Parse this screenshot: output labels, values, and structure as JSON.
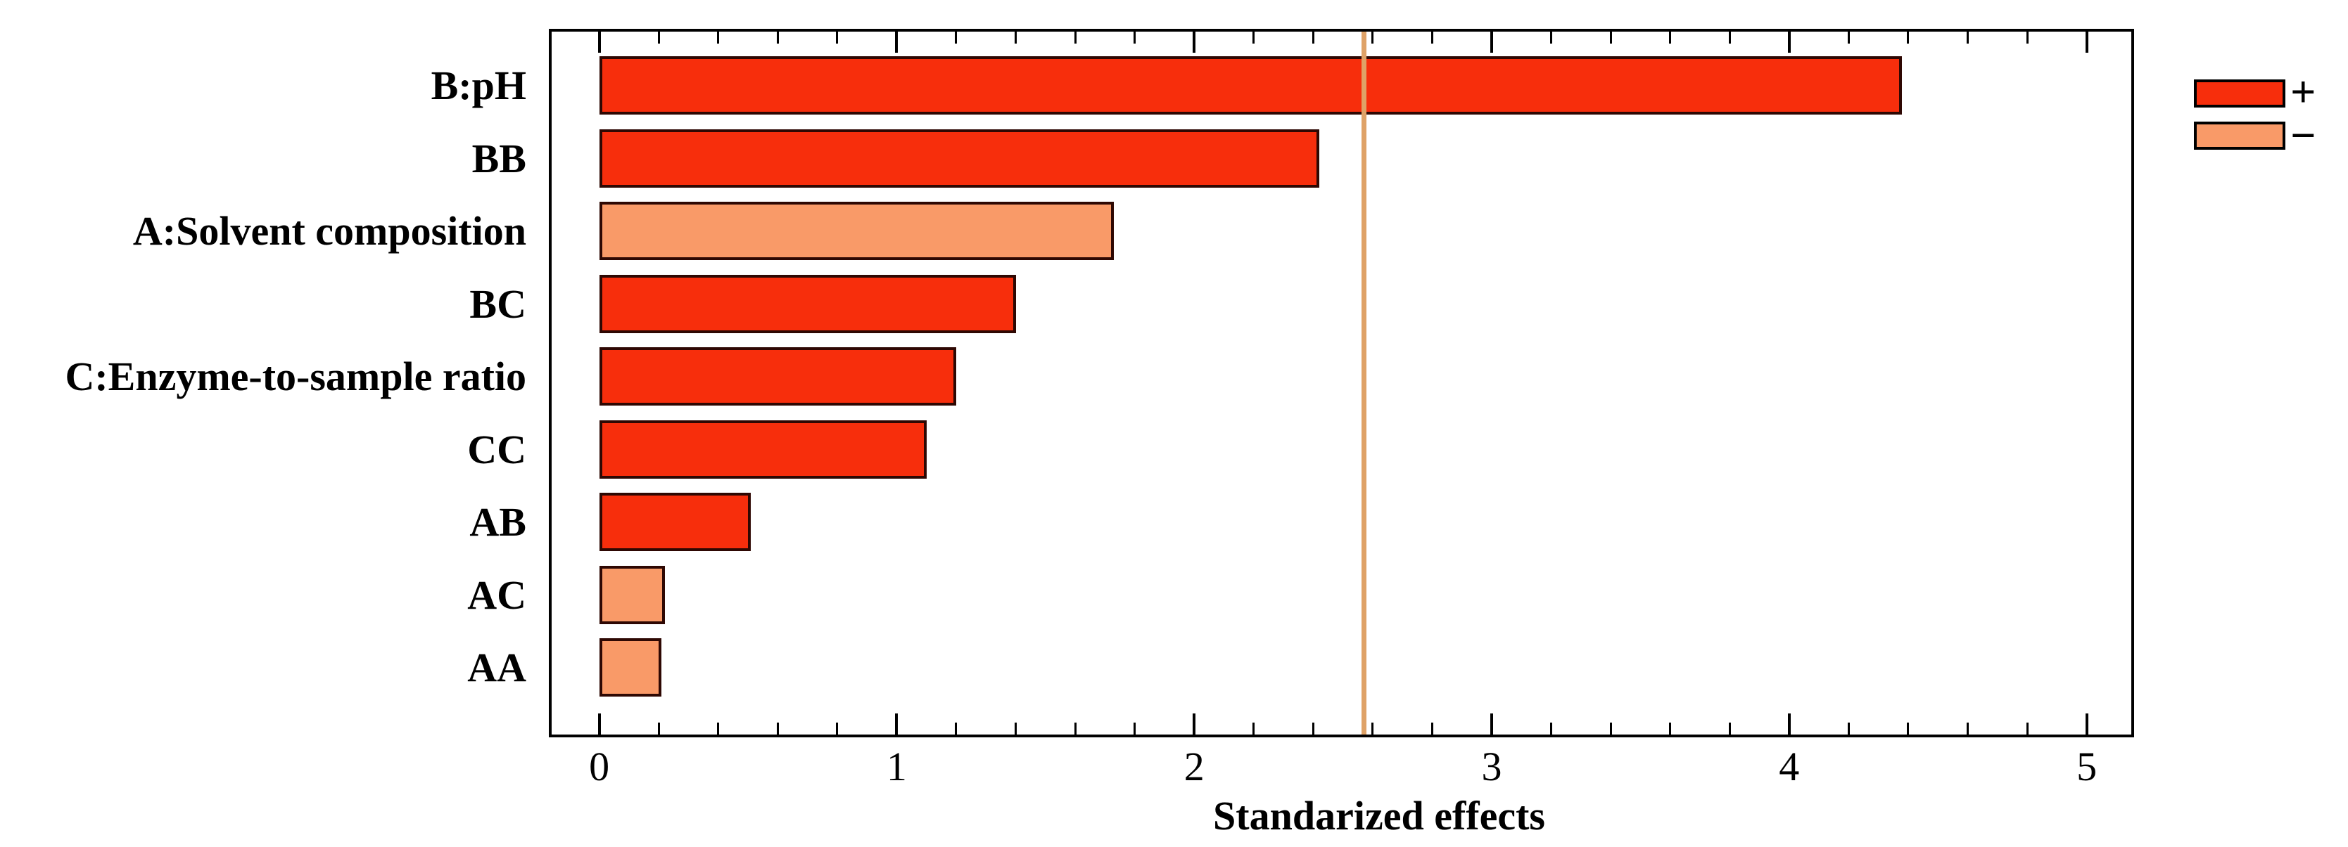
{
  "chart_data": {
    "type": "bar",
    "orientation": "horizontal",
    "title": "",
    "xlabel": "Standarized effects",
    "ylabel": "",
    "categories": [
      "B:pH",
      "BB",
      "A:Solvent composition",
      "BC",
      "C:Enzyme-to-sample ratio",
      "CC",
      "AB",
      "AC",
      "AA"
    ],
    "values": [
      4.38,
      2.42,
      1.73,
      1.4,
      1.2,
      1.1,
      0.51,
      0.22,
      0.21
    ],
    "signs": [
      "+",
      "+",
      "-",
      "+",
      "+",
      "+",
      "+",
      "-",
      "-"
    ],
    "series": [
      {
        "name": "+",
        "description": "positive effect",
        "values": [
          4.38,
          2.42,
          null,
          1.4,
          1.2,
          1.1,
          0.51,
          null,
          null
        ]
      },
      {
        "name": "-",
        "description": "negative effect",
        "values": [
          null,
          null,
          1.73,
          null,
          null,
          null,
          null,
          0.22,
          0.21
        ]
      }
    ],
    "reference_line": {
      "value": 2.57
    },
    "xlim": [
      -0.16,
      5.15
    ],
    "xticks": [
      0,
      1,
      2,
      3,
      4,
      5
    ],
    "xtick_labels": [
      "0",
      "1",
      "2",
      "3",
      "4",
      "5"
    ],
    "minor_tick_step": 0.2,
    "grid": false,
    "legend": {
      "position": "outside-top-right",
      "items": [
        {
          "label": "+",
          "series": "positive"
        },
        {
          "label": "−",
          "series": "negative"
        }
      ]
    }
  },
  "colors": {
    "positive_bar": "#f72e0c",
    "negative_bar": "#f99a68",
    "bar_border": "#2e0803",
    "reference_line": "#dfa267",
    "axis": "#000000",
    "text": "#000000",
    "background": "#ffffff"
  }
}
